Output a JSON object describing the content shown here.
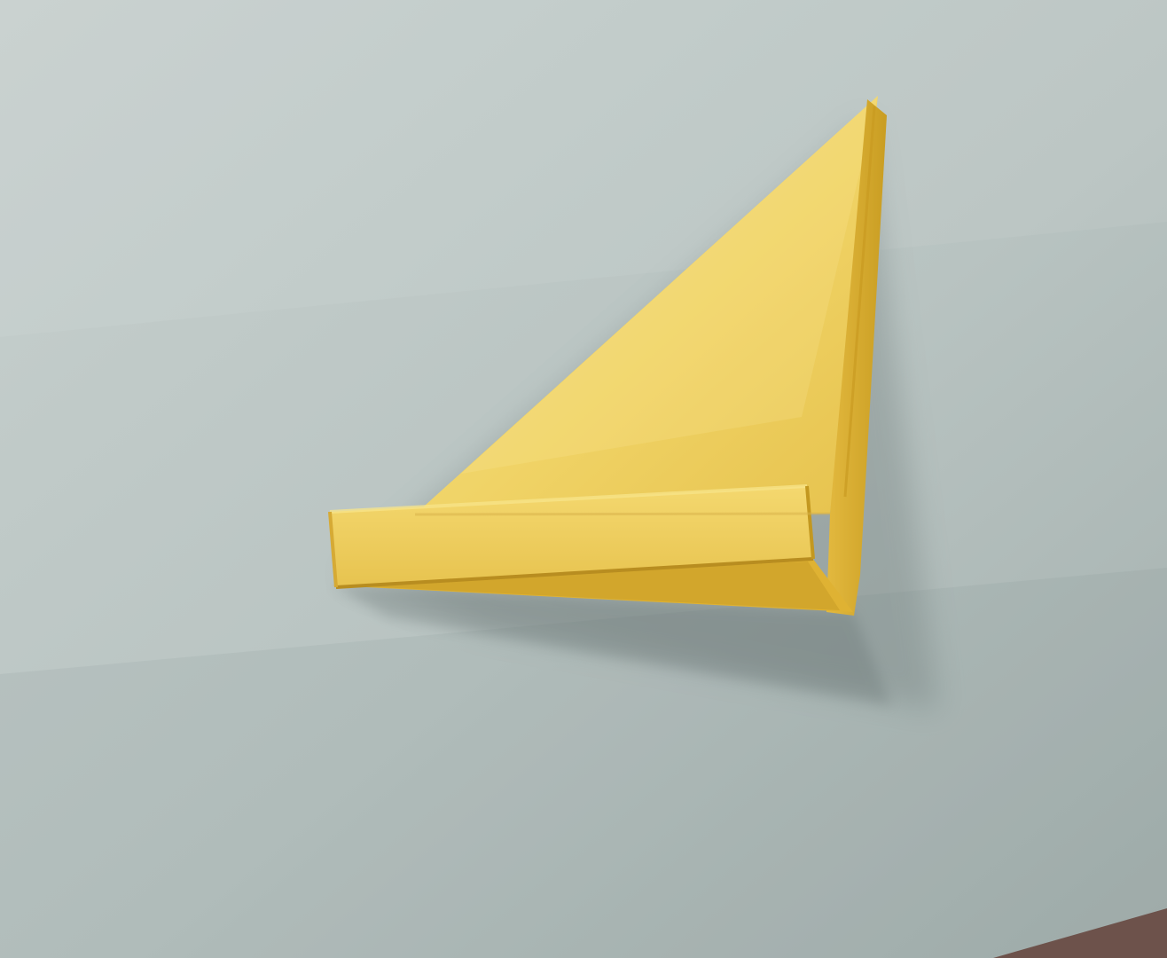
{
  "scene": {
    "subject": "origami-paper-fold",
    "colors": {
      "board": "#b7c3c1",
      "board_light": "#c6d0ce",
      "board_dark": "#9eabaa",
      "paper_main": "#f1d46a",
      "paper_light": "#f5de7e",
      "paper_mid": "#e8c34f",
      "paper_dark": "#d9ae34",
      "shadow": "#7f8b8a",
      "table": "#6b4a42"
    }
  }
}
